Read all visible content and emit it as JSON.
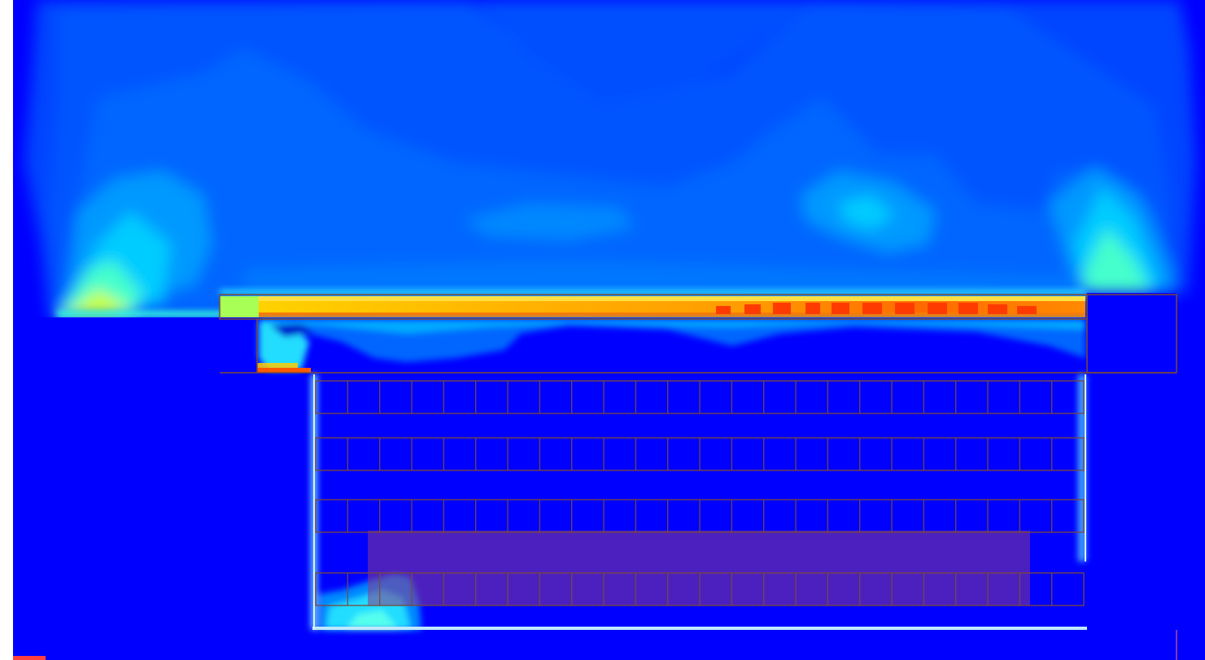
{
  "view": {
    "kind": "cfd-velocity-contour-section",
    "colormap": [
      "#0000ff",
      "#0033ff",
      "#0055ff",
      "#0077ff",
      "#00aaff",
      "#00ddff",
      "#7fff7f",
      "#ffff00",
      "#ff9900",
      "#ff3300"
    ],
    "background_color": "#0000ff",
    "outline_color": "#7a4a3a",
    "overlay_color": "#8a3a8a"
  },
  "rack_grid": {
    "rows": 4,
    "columns": 24
  }
}
